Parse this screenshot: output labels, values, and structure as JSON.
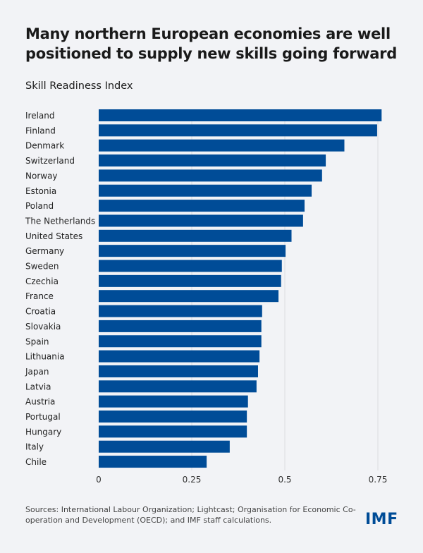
{
  "chart_data": {
    "type": "bar",
    "orientation": "horizontal",
    "title": "Many northern European economies are well positioned to supply new skills going forward",
    "subtitle": "Skill Readiness Index",
    "categories": [
      "Ireland",
      "Finland",
      "Denmark",
      "Switzerland",
      "Norway",
      "Estonia",
      "Poland",
      "The Netherlands",
      "United States",
      "Germany",
      "Sweden",
      "Czechia",
      "France",
      "Croatia",
      "Slovakia",
      "Spain",
      "Lithuania",
      "Japan",
      "Latvia",
      "Austria",
      "Portugal",
      "Hungary",
      "Italy",
      "Chile"
    ],
    "values": [
      0.76,
      0.748,
      0.66,
      0.61,
      0.6,
      0.572,
      0.553,
      0.549,
      0.518,
      0.502,
      0.492,
      0.49,
      0.483,
      0.439,
      0.437,
      0.437,
      0.432,
      0.428,
      0.424,
      0.401,
      0.398,
      0.398,
      0.352,
      0.29
    ],
    "xlim": [
      0,
      0.8
    ],
    "xticks": [
      0,
      0.25,
      0.5,
      0.75
    ],
    "xtick_labels": [
      "0",
      "0.25",
      "0.5",
      "0.75"
    ],
    "grid": "vertical",
    "bar_color": "#004c97",
    "gridline_color": "#dcdde0"
  },
  "footer": {
    "source": "Sources: International Labour Organization; Lightcast; Organisation for Economic Co-operation and Development (OECD); and IMF staff calculations.",
    "logo": "IMF"
  }
}
